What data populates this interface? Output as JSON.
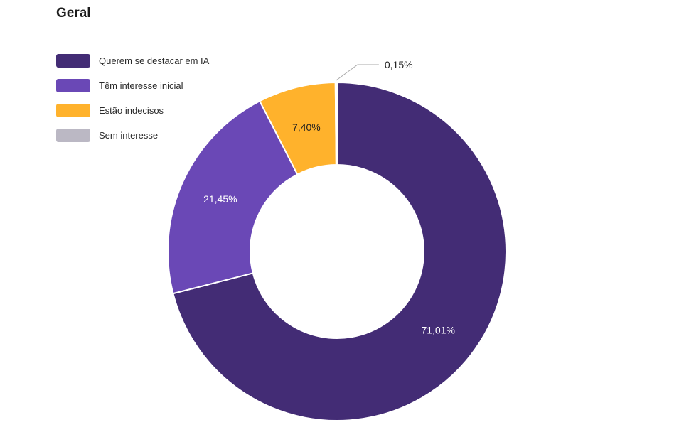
{
  "chart_data": {
    "type": "pie",
    "title": "Geral",
    "categories": [
      "Querem se destacar em IA",
      "Têm interesse inicial",
      "Estão indecisos",
      "Sem interesse"
    ],
    "values": [
      71.01,
      21.45,
      7.4,
      0.15
    ],
    "value_labels": [
      "71,01%",
      "21,45%",
      "7,40%",
      "0,15%"
    ],
    "colors": [
      "#432c75",
      "#6a48b6",
      "#ffb22c",
      "#bbb8c4"
    ],
    "label_colors": [
      "#ffffff",
      "#ffffff",
      "#1f1f1f",
      "#1f1f1f"
    ],
    "legend_position": "top-left",
    "donut": true
  }
}
